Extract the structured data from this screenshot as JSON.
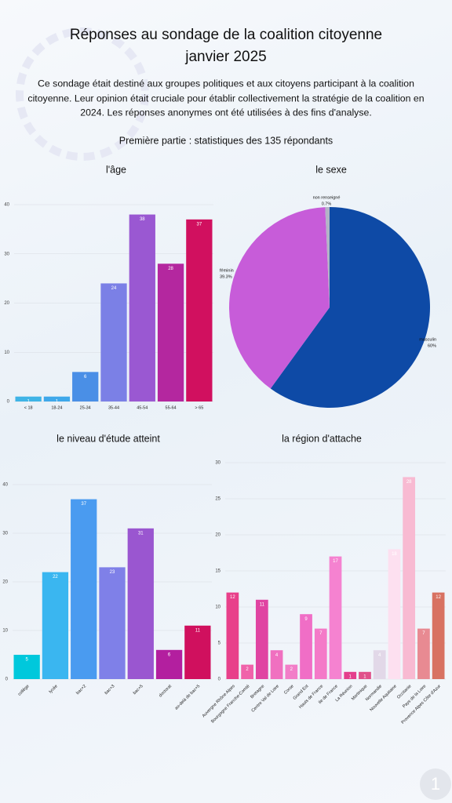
{
  "header": {
    "title_lines": [
      "Réponses au sondage de la coalition citoyenne",
      "janvier 2025"
    ],
    "description_lines": [
      "Ce sondage était destiné aux groupes politiques et aux citoyens participant à la coalition",
      "citoyenne. Leur opinion était cruciale pour établir collectivement la stratégie de la coalition en",
      "2024. Les réponses anonymes ont été utilisées à des fins d'analyse."
    ],
    "subtitle": "Première partie : statistiques des 135 répondants",
    "page_number": "1"
  },
  "chart_data": [
    {
      "type": "bar",
      "title": "l'âge",
      "categories": [
        "< 18",
        "18-24",
        "25-34",
        "35-44",
        "45-54",
        "55-64",
        "> 65"
      ],
      "values": [
        1,
        1,
        6,
        24,
        38,
        28,
        37
      ],
      "colors": [
        "#3fb4e6",
        "#3fa8ea",
        "#4a8fe6",
        "#7b80e6",
        "#9a58d2",
        "#b4279f",
        "#d1105f"
      ],
      "ylim": [
        0,
        40
      ],
      "yticks": [
        0,
        10,
        20,
        30,
        40
      ],
      "grid": true
    },
    {
      "type": "pie",
      "title": "le sexe",
      "categories": [
        "masculin",
        "féminin",
        "non renseigné"
      ],
      "values": [
        60,
        39.3,
        0.7
      ],
      "value_labels": [
        "60%",
        "39.3%",
        "0.7%"
      ],
      "colors": [
        "#0e4aa6",
        "#c75cd9",
        "#b2b4c6"
      ]
    },
    {
      "type": "bar",
      "title": "le niveau d'étude atteint",
      "categories": [
        "collège",
        "lycée",
        "bac+2",
        "bac+3",
        "bac+5",
        "doctorat",
        "au-delà de bac+5"
      ],
      "values": [
        5,
        22,
        37,
        23,
        31,
        6,
        11
      ],
      "colors": [
        "#00c8dc",
        "#3ab6f0",
        "#4a9bf0",
        "#7f80e8",
        "#9a56d0",
        "#b31f9f",
        "#d0105e"
      ],
      "ylim": [
        0,
        40
      ],
      "yticks": [
        0,
        10,
        20,
        30,
        40
      ],
      "grid": true
    },
    {
      "type": "bar",
      "title": "la région d'attache",
      "categories": [
        "Auvergne Rhône Alpes",
        "Bourgogne Franche-Comté",
        "Bretagne",
        "Centre Val de Loire",
        "Corse",
        "Grand Est",
        "Hauts de France",
        "Ile de France",
        "La Réunion",
        "Martinique",
        "Normandie",
        "Nouvelle Aquitaine",
        "Occitanie",
        "Pays de la Loire",
        "Provence Alpes Côte d'Azur"
      ],
      "values": [
        12,
        2,
        11,
        4,
        2,
        9,
        7,
        17,
        1,
        1,
        4,
        18,
        28,
        7,
        12
      ],
      "colors": [
        "#e8408a",
        "#f062aa",
        "#e044a2",
        "#f070c0",
        "#f27ec8",
        "#f06ec6",
        "#f47ac8",
        "#f582d0",
        "#e43e8c",
        "#e0508a",
        "#e2d8e8",
        "#fde0f0",
        "#f8bad2",
        "#e88a92",
        "#d87262"
      ],
      "ylim": [
        0,
        30
      ],
      "yticks": [
        0,
        5,
        10,
        15,
        20,
        25,
        30
      ],
      "grid": true
    }
  ]
}
